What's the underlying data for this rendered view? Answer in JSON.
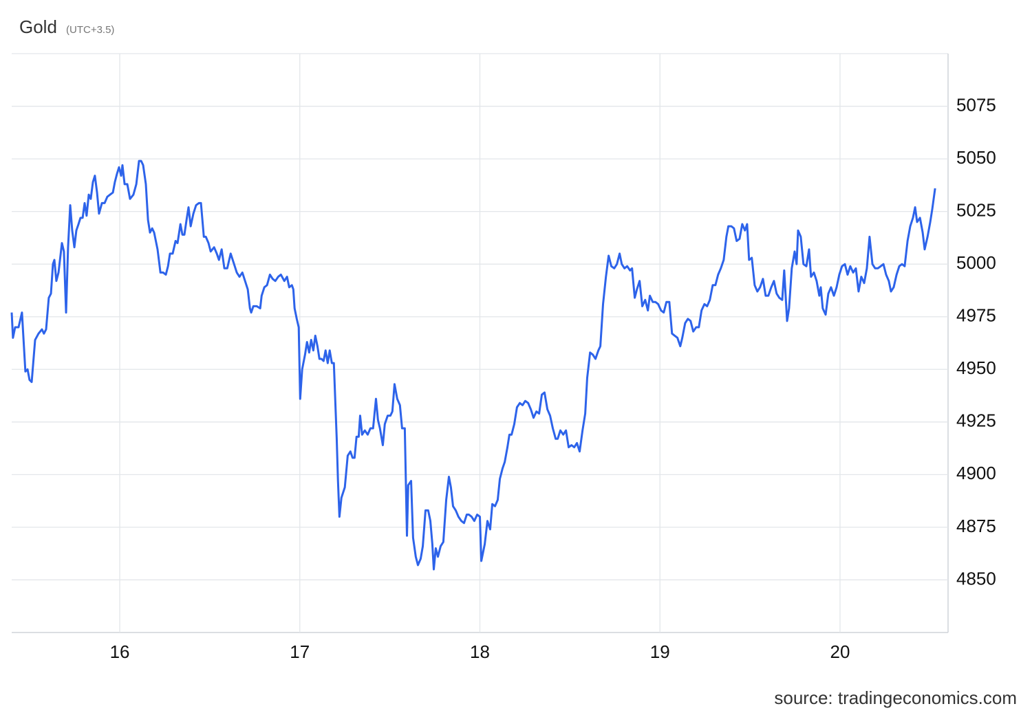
{
  "chart_data": {
    "type": "line",
    "title": "Gold",
    "subtitle": "(UTC+3.5)",
    "source": "source: tradingeconomics.com",
    "color": "#2d63ea",
    "grid": true,
    "xlim": [
      15.4,
      20.6
    ],
    "xticks": [
      16,
      17,
      18,
      19,
      20
    ],
    "ylim": [
      4825,
      5100
    ],
    "yticks": [
      4850,
      4875,
      4900,
      4925,
      4950,
      4975,
      5000,
      5025,
      5050,
      5075
    ],
    "x": [
      15.4,
      15.407,
      15.419,
      15.438,
      15.457,
      15.476,
      15.488,
      15.499,
      15.511,
      15.53,
      15.549,
      15.568,
      15.579,
      15.591,
      15.606,
      15.618,
      15.629,
      15.637,
      15.648,
      15.66,
      15.679,
      15.69,
      15.702,
      15.713,
      15.725,
      15.736,
      15.748,
      15.759,
      15.771,
      15.782,
      15.794,
      15.805,
      15.816,
      15.828,
      15.839,
      15.851,
      15.862,
      15.874,
      15.885,
      15.901,
      15.916,
      15.931,
      15.946,
      15.962,
      15.973,
      15.985,
      15.996,
      16.008,
      16.015,
      16.027,
      16.042,
      16.057,
      16.076,
      16.092,
      16.107,
      16.119,
      16.13,
      16.145,
      16.157,
      16.168,
      16.18,
      16.191,
      16.21,
      16.226,
      16.241,
      16.256,
      16.268,
      16.279,
      16.294,
      16.31,
      16.321,
      16.337,
      16.348,
      16.359,
      16.371,
      16.382,
      16.394,
      16.409,
      16.424,
      16.44,
      16.451,
      16.467,
      16.478,
      16.493,
      16.505,
      16.524,
      16.539,
      16.551,
      16.566,
      16.581,
      16.597,
      16.616,
      16.635,
      16.65,
      16.665,
      16.681,
      16.696,
      16.711,
      16.723,
      16.73,
      16.742,
      16.761,
      16.78,
      16.788,
      16.803,
      16.818,
      16.834,
      16.849,
      16.864,
      16.88,
      16.895,
      16.914,
      16.929,
      16.941,
      16.956,
      16.964,
      16.971,
      16.983,
      16.994,
      17.002,
      17.013,
      17.029,
      17.04,
      17.052,
      17.063,
      17.075,
      17.086,
      17.098,
      17.109,
      17.12,
      17.132,
      17.143,
      17.155,
      17.166,
      17.178,
      17.189,
      17.205,
      17.212,
      17.22,
      17.231,
      17.25,
      17.266,
      17.281,
      17.293,
      17.304,
      17.315,
      17.327,
      17.335,
      17.346,
      17.361,
      17.377,
      17.392,
      17.407,
      17.423,
      17.434,
      17.445,
      17.461,
      17.472,
      17.488,
      17.503,
      17.514,
      17.526,
      17.541,
      17.556,
      17.568,
      17.583,
      17.595,
      17.602,
      17.618,
      17.629,
      17.644,
      17.656,
      17.671,
      17.683,
      17.698,
      17.713,
      17.725,
      17.736,
      17.744,
      17.755,
      17.767,
      17.782,
      17.797,
      17.813,
      17.828,
      17.839,
      17.851,
      17.866,
      17.881,
      17.897,
      17.912,
      17.927,
      17.939,
      17.954,
      17.969,
      17.985,
      18.0,
      18.008,
      18.027,
      18.042,
      18.057,
      18.069,
      18.084,
      18.099,
      18.111,
      18.126,
      18.138,
      18.153,
      18.164,
      18.176,
      18.191,
      18.206,
      18.222,
      18.237,
      18.252,
      18.268,
      18.283,
      18.298,
      18.314,
      18.329,
      18.344,
      18.359,
      18.375,
      18.39,
      18.405,
      18.421,
      18.432,
      18.447,
      18.463,
      18.478,
      18.493,
      18.509,
      18.524,
      18.539,
      18.554,
      18.57,
      18.585,
      18.596,
      18.612,
      18.627,
      18.642,
      18.658,
      18.669,
      18.684,
      18.7,
      18.715,
      18.73,
      18.746,
      18.761,
      18.776,
      18.788,
      18.803,
      18.818,
      18.834,
      18.845,
      18.86,
      18.872,
      18.887,
      18.902,
      18.918,
      18.933,
      18.944,
      18.96,
      18.975,
      18.99,
      19.006,
      19.021,
      19.036,
      19.052,
      19.067,
      19.082,
      19.097,
      19.113,
      19.124,
      19.14,
      19.155,
      19.17,
      19.185,
      19.201,
      19.216,
      19.231,
      19.247,
      19.262,
      19.277,
      19.293,
      19.308,
      19.323,
      19.338,
      19.354,
      19.369,
      19.38,
      19.396,
      19.411,
      19.426,
      19.442,
      19.457,
      19.472,
      19.484,
      19.495,
      19.51,
      19.526,
      19.541,
      19.556,
      19.572,
      19.587,
      19.602,
      19.618,
      19.633,
      19.648,
      19.663,
      19.679,
      19.69,
      19.706,
      19.717,
      19.732,
      19.748,
      19.759,
      19.767,
      19.782,
      19.797,
      19.813,
      19.828,
      19.839,
      19.855,
      19.87,
      19.885,
      19.893,
      19.904,
      19.92,
      19.935,
      19.95,
      19.966,
      19.981,
      19.996,
      20.011,
      20.027,
      20.042,
      20.057,
      20.073,
      20.088,
      20.103,
      20.118,
      20.134,
      20.149,
      20.164,
      20.18,
      20.195,
      20.21,
      20.226,
      20.241,
      20.256,
      20.271,
      20.283,
      20.298,
      20.314,
      20.329,
      20.344,
      20.359,
      20.375,
      20.39,
      20.405,
      20.417,
      20.428,
      20.444,
      20.459,
      20.47,
      20.486,
      20.501,
      20.512,
      20.528
    ],
    "values": [
      4977,
      4965,
      4970,
      4970,
      4977,
      4949,
      4950,
      4945,
      4944,
      4964,
      4967,
      4969,
      4967,
      4969,
      4984,
      4986,
      5000,
      5002,
      4992,
      4996,
      5010,
      5006,
      4977,
      5008,
      5028,
      5016,
      5008,
      5016,
      5019,
      5022,
      5022,
      5029,
      5023,
      5033,
      5031,
      5039,
      5042,
      5034,
      5024,
      5029,
      5029,
      5032,
      5033,
      5034,
      5039,
      5043,
      5046,
      5042,
      5047,
      5038,
      5038,
      5031,
      5033,
      5038,
      5049,
      5049,
      5047,
      5038,
      5021,
      5015,
      5017,
      5015,
      5007,
      4996,
      4996,
      4995,
      4999,
      5005,
      5005,
      5011,
      5010,
      5019,
      5014,
      5014,
      5021,
      5027,
      5018,
      5024,
      5028,
      5029,
      5029,
      5013,
      5013,
      5010,
      5006,
      5008,
      5005,
      5002,
      5007,
      4998,
      4998,
      5005,
      5000,
      4996,
      4994,
      4996,
      4992,
      4988,
      4979,
      4977,
      4980,
      4980,
      4979,
      4985,
      4989,
      4990,
      4995,
      4993,
      4992,
      4994,
      4995,
      4992,
      4994,
      4989,
      4990,
      4988,
      4979,
      4974,
      4970,
      4936,
      4950,
      4957,
      4963,
      4958,
      4964,
      4959,
      4966,
      4961,
      4955,
      4955,
      4954,
      4959,
      4953,
      4959,
      4953,
      4953,
      4917,
      4897,
      4880,
      4889,
      4894,
      4909,
      4911,
      4908,
      4908,
      4918,
      4918,
      4928,
      4919,
      4921,
      4919,
      4922,
      4922,
      4936,
      4926,
      4922,
      4914,
      4924,
      4928,
      4928,
      4930,
      4943,
      4936,
      4933,
      4922,
      4922,
      4871,
      4895,
      4897,
      4870,
      4861,
      4857,
      4860,
      4866,
      4883,
      4883,
      4878,
      4867,
      4855,
      4865,
      4861,
      4866,
      4868,
      4888,
      4899,
      4894,
      4885,
      4883,
      4880,
      4878,
      4877,
      4881,
      4881,
      4880,
      4878,
      4881,
      4880,
      4859,
      4867,
      4878,
      4874,
      4886,
      4885,
      4888,
      4898,
      4903,
      4906,
      4913,
      4919,
      4919,
      4924,
      4932,
      4934,
      4933,
      4935,
      4934,
      4931,
      4927,
      4930,
      4929,
      4938,
      4939,
      4931,
      4928,
      4922,
      4917,
      4917,
      4921,
      4919,
      4921,
      4913,
      4914,
      4913,
      4915,
      4911,
      4921,
      4929,
      4946,
      4958,
      4957,
      4955,
      4959,
      4961,
      4981,
      4994,
      5004,
      4999,
      4998,
      5000,
      5005,
      5000,
      4998,
      4999,
      4997,
      4998,
      4984,
      4988,
      4992,
      4980,
      4983,
      4978,
      4985,
      4982,
      4982,
      4981,
      4978,
      4977,
      4982,
      4982,
      4967,
      4966,
      4965,
      4961,
      4965,
      4972,
      4974,
      4973,
      4968,
      4970,
      4970,
      4978,
      4981,
      4980,
      4983,
      4990,
      4990,
      4995,
      4998,
      5002,
      5013,
      5018,
      5018,
      5017,
      5011,
      5012,
      5019,
      5016,
      5019,
      5002,
      5003,
      4990,
      4987,
      4989,
      4993,
      4985,
      4985,
      4989,
      4992,
      4986,
      4984,
      4983,
      4997,
      4973,
      4979,
      4998,
      5006,
      5000,
      5016,
      5013,
      5000,
      4999,
      5007,
      4994,
      4996,
      4992,
      4985,
      4989,
      4979,
      4976,
      4986,
      4989,
      4985,
      4989,
      4995,
      4999,
      5000,
      4995,
      4999,
      4996,
      4998,
      4987,
      4994,
      4991,
      4998,
      5013,
      5000,
      4998,
      4998,
      4999,
      5000,
      4995,
      4992,
      4987,
      4989,
      4995,
      4999,
      5000,
      4999,
      5011,
      5018,
      5022,
      5027,
      5020,
      5022,
      5015,
      5007,
      5013,
      5020,
      5026,
      5036
    ]
  }
}
